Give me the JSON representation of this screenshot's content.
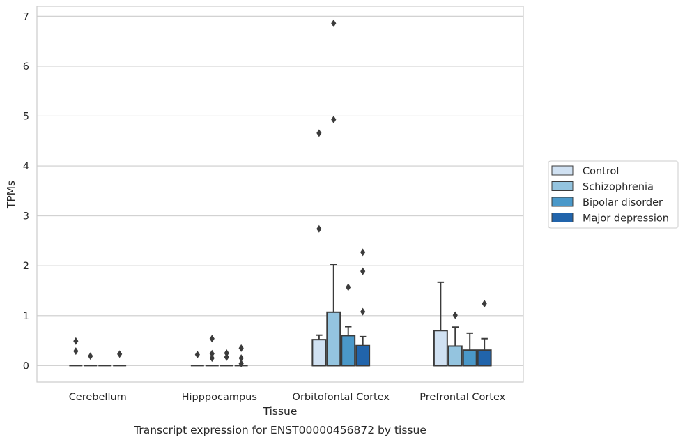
{
  "chart_data": {
    "type": "boxplot",
    "caption": "Transcript expression for ENST00000456872 by tissue",
    "xlabel": "Tissue",
    "ylabel": "TPMs",
    "ylim": [
      -0.33,
      7.2
    ],
    "yticks": [
      0,
      1,
      2,
      3,
      4,
      5,
      6,
      7
    ],
    "grid": "horizontal",
    "legend_position": "right",
    "categories": [
      "Cerebellum",
      "Hipppocampus",
      "Orbitofontal Cortex",
      "Prefrontal Cortex"
    ],
    "series": [
      {
        "name": "Control",
        "color": "#d0e1f2",
        "boxes": [
          {
            "q1": 0,
            "median": 0,
            "q3": 0,
            "whisker_low": 0,
            "whisker_high": 0,
            "outliers": [
              0.49,
              0.29
            ]
          },
          {
            "q1": 0,
            "median": 0,
            "q3": 0,
            "whisker_low": 0,
            "whisker_high": 0,
            "outliers": [
              0.22
            ]
          },
          {
            "q1": 0,
            "median": 0,
            "q3": 0.52,
            "whisker_low": 0,
            "whisker_high": 0.61,
            "outliers": [
              4.66,
              2.74
            ]
          },
          {
            "q1": 0,
            "median": 0,
            "q3": 0.7,
            "whisker_low": 0,
            "whisker_high": 1.67,
            "outliers": []
          }
        ]
      },
      {
        "name": "Schizophrenia",
        "color": "#94c4df",
        "boxes": [
          {
            "q1": 0,
            "median": 0,
            "q3": 0,
            "whisker_low": 0,
            "whisker_high": 0,
            "outliers": [
              0.19
            ]
          },
          {
            "q1": 0,
            "median": 0,
            "q3": 0,
            "whisker_low": 0,
            "whisker_high": 0,
            "outliers": [
              0.54,
              0.24,
              0.15
            ]
          },
          {
            "q1": 0,
            "median": 0,
            "q3": 1.07,
            "whisker_low": 0,
            "whisker_high": 2.03,
            "outliers": [
              6.86,
              4.93
            ]
          },
          {
            "q1": 0,
            "median": 0,
            "q3": 0.39,
            "whisker_low": 0,
            "whisker_high": 0.77,
            "outliers": [
              1.01
            ]
          }
        ]
      },
      {
        "name": "Bipolar disorder",
        "color": "#4a98c9",
        "boxes": [
          {
            "q1": 0,
            "median": 0,
            "q3": 0,
            "whisker_low": 0,
            "whisker_high": 0,
            "outliers": []
          },
          {
            "q1": 0,
            "median": 0,
            "q3": 0,
            "whisker_low": 0,
            "whisker_high": 0,
            "outliers": [
              0.25,
              0.17
            ]
          },
          {
            "q1": 0,
            "median": 0,
            "q3": 0.6,
            "whisker_low": 0,
            "whisker_high": 0.78,
            "outliers": [
              1.57
            ]
          },
          {
            "q1": 0,
            "median": 0,
            "q3": 0.31,
            "whisker_low": 0,
            "whisker_high": 0.65,
            "outliers": []
          }
        ]
      },
      {
        "name": "Major depression",
        "color": "#2164ab",
        "boxes": [
          {
            "q1": 0,
            "median": 0,
            "q3": 0,
            "whisker_low": 0,
            "whisker_high": 0,
            "outliers": [
              0.23
            ]
          },
          {
            "q1": 0,
            "median": 0,
            "q3": 0,
            "whisker_low": 0,
            "whisker_high": 0,
            "outliers": [
              0.35,
              0.15,
              0.04
            ]
          },
          {
            "q1": 0,
            "median": 0,
            "q3": 0.4,
            "whisker_low": 0,
            "whisker_high": 0.58,
            "outliers": [
              2.27,
              1.89,
              1.08
            ]
          },
          {
            "q1": 0,
            "median": 0,
            "q3": 0.31,
            "whisker_low": 0,
            "whisker_high": 0.54,
            "outliers": [
              1.24
            ]
          }
        ]
      }
    ]
  }
}
